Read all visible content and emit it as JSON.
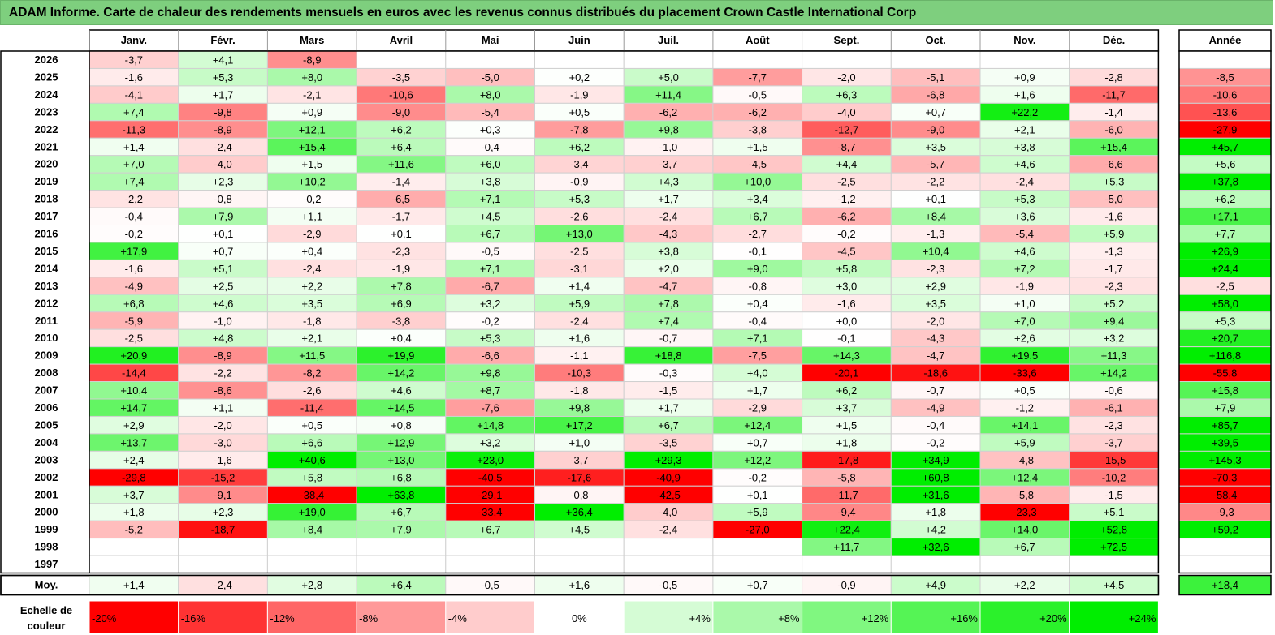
{
  "title": "ADAM Informe. Carte de chaleur des rendements mensuels en euros avec les revenus connus distribués du placement Crown Castle International Corp",
  "chart_data": {
    "type": "heatmap",
    "title": "ADAM Informe. Carte de chaleur des rendements mensuels en euros avec les revenus connus distribués du placement Crown Castle International Corp",
    "columns": [
      "Janv.",
      "Févr.",
      "Mars",
      "Avril",
      "Mai",
      "Juin",
      "Juil.",
      "Août",
      "Sept.",
      "Oct.",
      "Nov.",
      "Déc."
    ],
    "year_column_label": "Année",
    "rows": [
      {
        "label": "2026",
        "values": [
          "-3,7",
          "+4,1",
          "-8,9",
          "",
          "",
          "",
          "",
          "",
          "",
          "",
          "",
          ""
        ],
        "year": ""
      },
      {
        "label": "2025",
        "values": [
          "-1,6",
          "+5,3",
          "+8,0",
          "-3,5",
          "-5,0",
          "+0,2",
          "+5,0",
          "-7,7",
          "-2,0",
          "-5,1",
          "+0,9",
          "-2,8"
        ],
        "year": "-8,5"
      },
      {
        "label": "2024",
        "values": [
          "-4,1",
          "+1,7",
          "-2,1",
          "-10,6",
          "+8,0",
          "-1,9",
          "+11,4",
          "-0,5",
          "+6,3",
          "-6,8",
          "+1,6",
          "-11,7"
        ],
        "year": "-10,6"
      },
      {
        "label": "2023",
        "values": [
          "+7,4",
          "-9,8",
          "+0,9",
          "-9,0",
          "-5,4",
          "+0,5",
          "-6,2",
          "-6,2",
          "-4,0",
          "+0,7",
          "+22,2",
          "-1,4"
        ],
        "year": "-13,6"
      },
      {
        "label": "2022",
        "values": [
          "-11,3",
          "-8,9",
          "+12,1",
          "+6,2",
          "+0,3",
          "-7,8",
          "+9,8",
          "-3,8",
          "-12,7",
          "-9,0",
          "+2,1",
          "-6,0"
        ],
        "year": "-27,9"
      },
      {
        "label": "2021",
        "values": [
          "+1,4",
          "-2,4",
          "+15,4",
          "+6,4",
          "-0,4",
          "+6,2",
          "-1,0",
          "+1,5",
          "-8,7",
          "+3,5",
          "+3,8",
          "+15,4"
        ],
        "year": "+45,7"
      },
      {
        "label": "2020",
        "values": [
          "+7,0",
          "-4,0",
          "+1,5",
          "+11,6",
          "+6,0",
          "-3,4",
          "-3,7",
          "-4,5",
          "+4,4",
          "-5,7",
          "+4,6",
          "-6,6"
        ],
        "year": "+5,6"
      },
      {
        "label": "2019",
        "values": [
          "+7,4",
          "+2,3",
          "+10,2",
          "-1,4",
          "+3,8",
          "-0,9",
          "+4,3",
          "+10,0",
          "-2,5",
          "-2,2",
          "-2,4",
          "+5,3"
        ],
        "year": "+37,8"
      },
      {
        "label": "2018",
        "values": [
          "-2,2",
          "-0,8",
          "-0,2",
          "-6,5",
          "+7,1",
          "+5,3",
          "+1,7",
          "+3,4",
          "-1,2",
          "+0,1",
          "+5,3",
          "-5,0"
        ],
        "year": "+6,2"
      },
      {
        "label": "2017",
        "values": [
          "-0,4",
          "+7,9",
          "+1,1",
          "-1,7",
          "+4,5",
          "-2,6",
          "-2,4",
          "+6,7",
          "-6,2",
          "+8,4",
          "+3,6",
          "-1,6"
        ],
        "year": "+17,1"
      },
      {
        "label": "2016",
        "values": [
          "-0,2",
          "+0,1",
          "-2,9",
          "+0,1",
          "+6,7",
          "+13,0",
          "-4,3",
          "-2,7",
          "-0,2",
          "-1,3",
          "-5,4",
          "+5,9"
        ],
        "year": "+7,7"
      },
      {
        "label": "2015",
        "values": [
          "+17,9",
          "+0,7",
          "+0,4",
          "-2,3",
          "-0,5",
          "-2,5",
          "+3,8",
          "-0,1",
          "-4,5",
          "+10,4",
          "+4,6",
          "-1,3"
        ],
        "year": "+26,9"
      },
      {
        "label": "2014",
        "values": [
          "-1,6",
          "+5,1",
          "-2,4",
          "-1,9",
          "+7,1",
          "-3,1",
          "+2,0",
          "+9,0",
          "+5,8",
          "-2,3",
          "+7,2",
          "-1,7"
        ],
        "year": "+24,4"
      },
      {
        "label": "2013",
        "values": [
          "-4,9",
          "+2,5",
          "+2,2",
          "+7,8",
          "-6,7",
          "+1,4",
          "-4,7",
          "-0,8",
          "+3,0",
          "+2,9",
          "-1,9",
          "-2,3"
        ],
        "year": "-2,5"
      },
      {
        "label": "2012",
        "values": [
          "+6,8",
          "+4,6",
          "+3,5",
          "+6,9",
          "+3,2",
          "+5,9",
          "+7,8",
          "+0,4",
          "-1,6",
          "+3,5",
          "+1,0",
          "+5,2"
        ],
        "year": "+58,0"
      },
      {
        "label": "2011",
        "values": [
          "-5,9",
          "-1,0",
          "-1,8",
          "-3,8",
          "-0,2",
          "-2,4",
          "+7,4",
          "-0,4",
          "+0,0",
          "-2,0",
          "+7,0",
          "+9,4"
        ],
        "year": "+5,3"
      },
      {
        "label": "2010",
        "values": [
          "-2,5",
          "+4,8",
          "+2,1",
          "+0,4",
          "+5,3",
          "+1,6",
          "-0,7",
          "+7,1",
          "-0,1",
          "-4,3",
          "+2,6",
          "+3,2"
        ],
        "year": "+20,7"
      },
      {
        "label": "2009",
        "values": [
          "+20,9",
          "-8,9",
          "+11,5",
          "+19,9",
          "-6,6",
          "-1,1",
          "+18,8",
          "-7,5",
          "+14,3",
          "-4,7",
          "+19,5",
          "+11,3"
        ],
        "year": "+116,8"
      },
      {
        "label": "2008",
        "values": [
          "-14,4",
          "-2,2",
          "-8,2",
          "+14,2",
          "+9,8",
          "-10,3",
          "-0,3",
          "+4,0",
          "-20,1",
          "-18,6",
          "-33,6",
          "+14,2"
        ],
        "year": "-55,8"
      },
      {
        "label": "2007",
        "values": [
          "+10,4",
          "-8,6",
          "-2,6",
          "+4,6",
          "+8,7",
          "-1,8",
          "-1,5",
          "+1,7",
          "+6,2",
          "-0,7",
          "+0,5",
          "-0,6"
        ],
        "year": "+15,8"
      },
      {
        "label": "2006",
        "values": [
          "+14,7",
          "+1,1",
          "-11,4",
          "+14,5",
          "-7,6",
          "+9,8",
          "+1,7",
          "-2,9",
          "+3,7",
          "-4,9",
          "-1,2",
          "-6,1"
        ],
        "year": "+7,9"
      },
      {
        "label": "2005",
        "values": [
          "+2,9",
          "-2,0",
          "+0,5",
          "+0,8",
          "+14,8",
          "+17,2",
          "+6,7",
          "+12,4",
          "+1,5",
          "-0,4",
          "+14,1",
          "-2,3"
        ],
        "year": "+85,7"
      },
      {
        "label": "2004",
        "values": [
          "+13,7",
          "-3,0",
          "+6,6",
          "+12,9",
          "+3,2",
          "+1,0",
          "-3,5",
          "+0,7",
          "+1,8",
          "-0,2",
          "+5,9",
          "-3,7"
        ],
        "year": "+39,5"
      },
      {
        "label": "2003",
        "values": [
          "+2,4",
          "-1,6",
          "+40,6",
          "+13,0",
          "+23,0",
          "-3,7",
          "+29,3",
          "+12,2",
          "-17,8",
          "+34,9",
          "-4,8",
          "-15,5"
        ],
        "year": "+145,3"
      },
      {
        "label": "2002",
        "values": [
          "-29,8",
          "-15,2",
          "+5,8",
          "+6,8",
          "-40,5",
          "-17,6",
          "-40,9",
          "-0,2",
          "-5,8",
          "+60,8",
          "+12,4",
          "-10,2"
        ],
        "year": "-70,3"
      },
      {
        "label": "2001",
        "values": [
          "+3,7",
          "-9,1",
          "-38,4",
          "+63,8",
          "-29,1",
          "-0,8",
          "-42,5",
          "+0,1",
          "-11,7",
          "+31,6",
          "-5,8",
          "-1,5"
        ],
        "year": "-58,4"
      },
      {
        "label": "2000",
        "values": [
          "+1,8",
          "+2,3",
          "+19,0",
          "+6,7",
          "-33,4",
          "+36,4",
          "-4,0",
          "+5,9",
          "-9,4",
          "+1,8",
          "-23,3",
          "+5,1"
        ],
        "year": "-9,3"
      },
      {
        "label": "1999",
        "values": [
          "-5,2",
          "-18,7",
          "+8,4",
          "+7,9",
          "+6,7",
          "+4,5",
          "-2,4",
          "-27,0",
          "+22,4",
          "+4,2",
          "+14,0",
          "+52,8"
        ],
        "year": "+59,2"
      },
      {
        "label": "1998",
        "values": [
          "",
          "",
          "",
          "",
          "",
          "",
          "",
          "",
          "+11,7",
          "+32,6",
          "+6,7",
          "+72,5"
        ],
        "year": ""
      },
      {
        "label": "1997",
        "values": [
          "",
          "",
          "",
          "",
          "",
          "",
          "",
          "",
          "",
          "",
          "",
          ""
        ],
        "year": ""
      }
    ],
    "average": {
      "label": "Moy.",
      "values": [
        "+1,4",
        "-2,4",
        "+2,8",
        "+6,4",
        "-0,5",
        "+1,6",
        "-0,5",
        "+0,7",
        "-0,9",
        "+4,9",
        "+2,2",
        "+4,5"
      ],
      "year": "+18,4"
    },
    "scale": {
      "label_line1": "Echelle de",
      "label_line2": "couleur",
      "stops": [
        "-20%",
        "-16%",
        "-12%",
        "-8%",
        "-4%",
        "0%",
        "+4%",
        "+8%",
        "+12%",
        "+16%",
        "+20%",
        "+24%"
      ],
      "stop_values": [
        -20,
        -16,
        -12,
        -8,
        -4,
        0,
        4,
        8,
        12,
        16,
        20,
        24
      ]
    },
    "colors": {
      "negative": "#ff0000",
      "positive": "#00ee00",
      "neutral": "#ffffff",
      "title_bg": "#7ecf7e"
    }
  }
}
